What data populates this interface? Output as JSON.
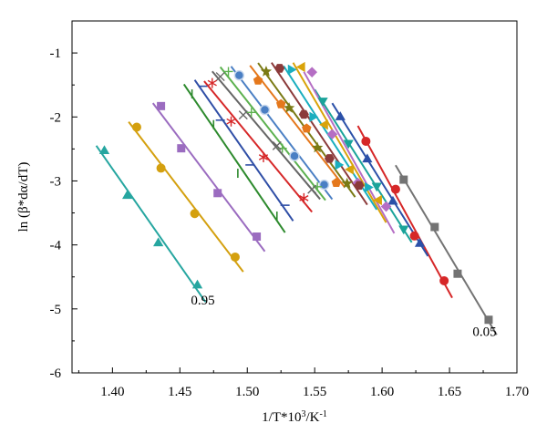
{
  "chart_data": {
    "type": "scatter",
    "title": "",
    "xlabel_main": "1/T*10",
    "xlabel_sup": "3",
    "xlabel_rest": "/K",
    "xlabel_sup2": "-1",
    "ylabel": "ln (β*dα/dT)",
    "xlim": [
      1.37,
      1.7
    ],
    "ylim": [
      -6,
      -0.5
    ],
    "grid": false,
    "legend": "none",
    "x_ticks": [
      "1.40",
      "1.45",
      "1.50",
      "1.55",
      "1.60",
      "1.65",
      "1.70"
    ],
    "y_ticks": [
      "-1",
      "-2",
      "-3",
      "-4",
      "-5",
      "-6"
    ],
    "annotations": [
      {
        "text": "0.95",
        "x": 1.467,
        "y": -4.93
      },
      {
        "text": "0.05",
        "x": 1.676,
        "y": -5.42
      }
    ],
    "series": [
      {
        "alpha": "0.05",
        "marker": "square",
        "color": "#737373",
        "points": [
          [
            1.616,
            -2.98
          ],
          [
            1.639,
            -3.72
          ],
          [
            1.656,
            -4.45
          ],
          [
            1.679,
            -5.17
          ]
        ]
      },
      {
        "alpha": "0.10",
        "marker": "circle",
        "color": "#d62728",
        "points": [
          [
            1.588,
            -2.38
          ],
          [
            1.61,
            -3.13
          ],
          [
            1.624,
            -3.86
          ],
          [
            1.646,
            -4.56
          ]
        ]
      },
      {
        "alpha": "0.15",
        "marker": "triangle-up",
        "color": "#2b50a8",
        "points": [
          [
            1.569,
            -1.99
          ],
          [
            1.589,
            -2.65
          ],
          [
            1.608,
            -3.31
          ],
          [
            1.628,
            -3.97
          ]
        ]
      },
      {
        "alpha": "0.20",
        "marker": "triangle-down",
        "color": "#1aa39a",
        "points": [
          [
            1.556,
            -1.76
          ],
          [
            1.575,
            -2.42
          ],
          [
            1.596,
            -3.09
          ],
          [
            1.616,
            -3.76
          ]
        ]
      },
      {
        "alpha": "0.25",
        "marker": "diamond",
        "color": "#b56ec4",
        "points": [
          [
            1.548,
            -1.3
          ],
          [
            1.563,
            -2.27
          ],
          [
            1.582,
            -3.03
          ],
          [
            1.603,
            -3.4
          ]
        ]
      },
      {
        "alpha": "0.30",
        "marker": "triangle-left",
        "color": "#d9a30a",
        "points": [
          [
            1.54,
            -1.22
          ],
          [
            1.557,
            -2.12
          ],
          [
            1.576,
            -2.82
          ],
          [
            1.597,
            -3.3
          ]
        ]
      },
      {
        "alpha": "0.35",
        "marker": "triangle-right",
        "color": "#1aaebf",
        "points": [
          [
            1.533,
            -1.26
          ],
          [
            1.549,
            -2.0
          ],
          [
            1.568,
            -2.75
          ],
          [
            1.59,
            -3.1
          ]
        ]
      },
      {
        "alpha": "0.40",
        "marker": "hexagon",
        "color": "#8b3a3a",
        "points": [
          [
            1.524,
            -1.24
          ],
          [
            1.542,
            -1.96
          ],
          [
            1.561,
            -2.65
          ],
          [
            1.583,
            -3.07
          ]
        ]
      },
      {
        "alpha": "0.45",
        "marker": "star",
        "color": "#7a7a14",
        "points": [
          [
            1.514,
            -1.29
          ],
          [
            1.531,
            -1.86
          ],
          [
            1.552,
            -2.48
          ],
          [
            1.574,
            -3.04
          ]
        ]
      },
      {
        "alpha": "0.50",
        "marker": "pentagon",
        "color": "#e5781c",
        "points": [
          [
            1.508,
            -1.43
          ],
          [
            1.525,
            -1.8
          ],
          [
            1.544,
            -2.18
          ],
          [
            1.566,
            -3.03
          ]
        ]
      },
      {
        "alpha": "0.55",
        "marker": "circle-shaded",
        "color": "#4a7fc4",
        "points": [
          [
            1.494,
            -1.35
          ],
          [
            1.513,
            -1.89
          ],
          [
            1.535,
            -2.61
          ],
          [
            1.557,
            -3.06
          ]
        ]
      },
      {
        "alpha": "0.60",
        "marker": "plus",
        "color": "#5cb14f",
        "points": [
          [
            1.486,
            -1.29
          ],
          [
            1.503,
            -1.93
          ],
          [
            1.526,
            -2.49
          ],
          [
            1.552,
            -3.09
          ]
        ]
      },
      {
        "alpha": "0.65",
        "marker": "cross",
        "color": "#666666",
        "points": [
          [
            1.48,
            -1.37
          ],
          [
            1.497,
            -1.97
          ],
          [
            1.522,
            -2.45
          ],
          [
            1.548,
            -3.13
          ]
        ]
      },
      {
        "alpha": "0.70",
        "marker": "asterisk",
        "color": "#d62728",
        "points": [
          [
            1.474,
            -1.47
          ],
          [
            1.488,
            -2.07
          ],
          [
            1.512,
            -2.63
          ],
          [
            1.542,
            -3.27
          ]
        ]
      },
      {
        "alpha": "0.75",
        "marker": "dash",
        "color": "#2f4ea6",
        "points": [
          [
            1.467,
            -1.52
          ],
          [
            1.48,
            -2.05
          ],
          [
            1.502,
            -2.75
          ],
          [
            1.528,
            -3.38
          ]
        ]
      },
      {
        "alpha": "0.80",
        "marker": "vbar",
        "color": "#2d8a2d",
        "points": [
          [
            1.459,
            -1.64
          ],
          [
            1.475,
            -2.12
          ],
          [
            1.493,
            -2.88
          ],
          [
            1.522,
            -3.55
          ]
        ]
      },
      {
        "alpha": "0.85",
        "marker": "square",
        "color": "#9b6cc0",
        "points": [
          [
            1.436,
            -1.83
          ],
          [
            1.451,
            -2.49
          ],
          [
            1.478,
            -3.19
          ],
          [
            1.507,
            -3.87
          ]
        ]
      },
      {
        "alpha": "0.90",
        "marker": "circle",
        "color": "#d4a00f",
        "points": [
          [
            1.418,
            -2.16
          ],
          [
            1.436,
            -2.8
          ],
          [
            1.461,
            -3.51
          ],
          [
            1.491,
            -4.19
          ]
        ]
      },
      {
        "alpha": "0.95",
        "marker": "triangle-up",
        "color": "#26a6a0",
        "points": [
          [
            1.394,
            -2.52
          ],
          [
            1.411,
            -3.22
          ],
          [
            1.434,
            -3.96
          ],
          [
            1.463,
            -4.62
          ]
        ]
      }
    ]
  }
}
